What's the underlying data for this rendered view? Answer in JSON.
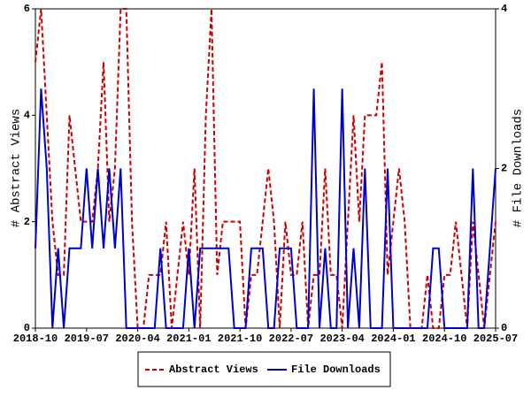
{
  "chart_data": {
    "type": "line",
    "y_label": "# Abstract Views",
    "y2_label": "# File Downloads",
    "categories": [
      "2018-10",
      null,
      null,
      null,
      null,
      null,
      null,
      null,
      null,
      "2019-07",
      null,
      null,
      null,
      null,
      null,
      null,
      null,
      null,
      "2020-04",
      null,
      null,
      null,
      null,
      null,
      null,
      null,
      null,
      "2021-01",
      null,
      null,
      null,
      null,
      null,
      null,
      null,
      null,
      "2021-10",
      null,
      null,
      null,
      null,
      null,
      null,
      null,
      null,
      "2022-07",
      null,
      null,
      null,
      null,
      null,
      null,
      null,
      null,
      "2023-04",
      null,
      null,
      null,
      null,
      null,
      null,
      null,
      null,
      "2024-01",
      null,
      null,
      null,
      null,
      null,
      null,
      null,
      null,
      "2024-10",
      null,
      null,
      null,
      null,
      null,
      null,
      null,
      null,
      "2025-07"
    ],
    "series": [
      {
        "name": "Abstract Views",
        "color": "#cc0000",
        "dashed": true,
        "values": [
          5,
          6,
          4,
          2,
          1,
          1,
          4,
          3,
          2,
          2,
          2,
          3,
          5,
          2,
          3,
          6,
          6,
          2,
          0,
          0,
          1,
          1,
          1,
          2,
          0,
          1,
          2,
          1,
          3,
          0,
          4,
          6,
          1,
          2,
          2,
          2,
          2,
          0,
          1,
          1,
          2,
          3,
          2,
          0,
          2,
          1,
          1,
          2,
          0,
          1,
          1,
          3,
          1,
          1,
          0,
          2,
          4,
          2,
          4,
          4,
          4,
          5,
          1,
          2,
          3,
          2,
          0,
          0,
          0,
          1,
          0,
          0,
          1,
          1,
          2,
          1,
          0,
          2,
          1,
          0,
          1,
          2
        ]
      },
      {
        "name": "File Downloads",
        "color": "#0000cc",
        "axis": "y2",
        "dashed": false,
        "values": [
          1,
          3,
          2,
          0,
          1,
          0,
          1,
          1,
          1,
          2,
          1,
          2,
          1,
          2,
          1,
          2,
          0,
          0,
          0,
          0,
          0,
          0,
          1,
          0,
          0,
          0,
          0,
          1,
          0,
          1,
          1,
          1,
          1,
          1,
          1,
          0,
          0,
          0,
          1,
          1,
          1,
          0,
          0,
          1,
          1,
          1,
          0,
          0,
          0,
          3,
          0,
          1,
          0,
          0,
          3,
          0,
          1,
          0,
          2,
          0,
          0,
          0,
          2,
          0,
          0,
          0,
          0,
          0,
          0,
          0,
          1,
          1,
          0,
          0,
          0,
          0,
          0,
          2,
          0,
          0,
          1,
          2
        ]
      }
    ],
    "ylim": [
      0,
      6
    ],
    "yticks": [
      0,
      2,
      4,
      6
    ],
    "y2lim": [
      0,
      4
    ],
    "y2ticks": [
      0,
      2,
      4
    ],
    "legend": "bottom"
  }
}
